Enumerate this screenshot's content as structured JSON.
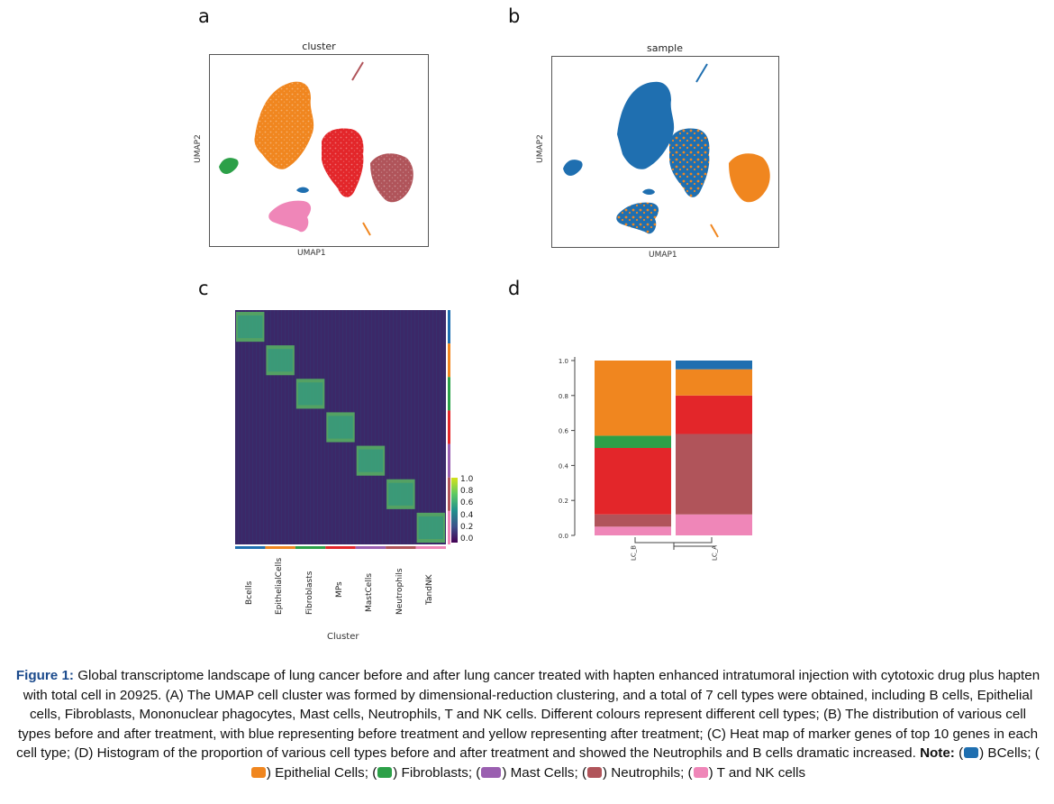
{
  "panels": {
    "a": {
      "letter": "a",
      "title": "cluster",
      "xlabel": "UMAP1",
      "ylabel": "UMAP2"
    },
    "b": {
      "letter": "b",
      "title": "sample",
      "xlabel": "UMAP1",
      "ylabel": "UMAP2"
    },
    "c": {
      "letter": "c",
      "xlabel": "Cluster"
    },
    "d": {
      "letter": "d"
    }
  },
  "colors": {
    "bcells": "#1f6fb0",
    "epithelial": "#f0861f",
    "fibroblasts": "#2ca048",
    "mast": "#9a5fb0",
    "neutrophils": "#e3262a",
    "mps": "#b0545a",
    "tnk": "#ef86b8"
  },
  "chart_data": [
    {
      "type": "heatmap",
      "categories": [
        "Bcells",
        "EpithelialCells",
        "Fibroblasts",
        "MPs",
        "MastCells",
        "Neutrophils",
        "TandNK"
      ],
      "xlabel": "Cluster",
      "colorbar_ticks": [
        "1.0",
        "0.8",
        "0.6",
        "0.4",
        "0.2",
        "0.0"
      ],
      "colorbar_range": [
        0,
        1
      ]
    },
    {
      "type": "bar",
      "stacked": true,
      "categories": [
        "LC_B",
        "LC_A"
      ],
      "ylim": [
        0,
        1.0
      ],
      "yticks": [
        "1.0",
        "0.8",
        "0.6",
        "0.4",
        "0.2",
        "0.0"
      ],
      "series": [
        {
          "color": "#ef86b8",
          "values": [
            0.05,
            0.12
          ]
        },
        {
          "color": "#b0545a",
          "values": [
            0.07,
            0.46
          ]
        },
        {
          "color": "#e3262a",
          "values": [
            0.38,
            0.22
          ]
        },
        {
          "color": "#2ca048",
          "values": [
            0.07,
            0.0
          ]
        },
        {
          "color": "#f0861f",
          "values": [
            0.43,
            0.15
          ]
        },
        {
          "color": "#1f6fb0",
          "values": [
            0.0,
            0.05
          ]
        }
      ]
    }
  ],
  "caption": {
    "label": "Figure 1:",
    "text": " Global transcriptome landscape of lung cancer before and after lung cancer treated with hapten enhanced intratumoral injection with cytotoxic drug plus hapten with total cell in 20925. (A) The UMAP cell cluster was formed by dimensional-reduction clustering, and a total of 7 cell types were obtained, including B cells, Epithelial cells, Fibroblasts, Mononuclear phagocytes, Mast cells, Neutrophils, T and NK cells. Different colours represent different cell types; (B) The distribution of various cell types before and after treatment, with blue representing before treatment and yellow representing after treatment; (C) Heat map of marker genes of top 10 genes in each cell type; (D) Histogram of the proportion of various cell types before and after treatment and showed the Neutrophils and B cells dramatic increased. ",
    "note_label": "Note:",
    "legend": [
      {
        "color": "#1f6fb0",
        "label": ") BCells; ("
      },
      {
        "color": "#f0861f",
        "label": ") Epithelial Cells; ("
      },
      {
        "color": "#2ca048",
        "label": ") Fibroblasts; ("
      },
      {
        "color": "#9a5fb0",
        "label": ") Mast Cells; ("
      },
      {
        "color": "#b0545a",
        "label": ") Neutrophils; ("
      },
      {
        "color": "#ef86b8",
        "label": ") T and NK cells"
      }
    ]
  }
}
